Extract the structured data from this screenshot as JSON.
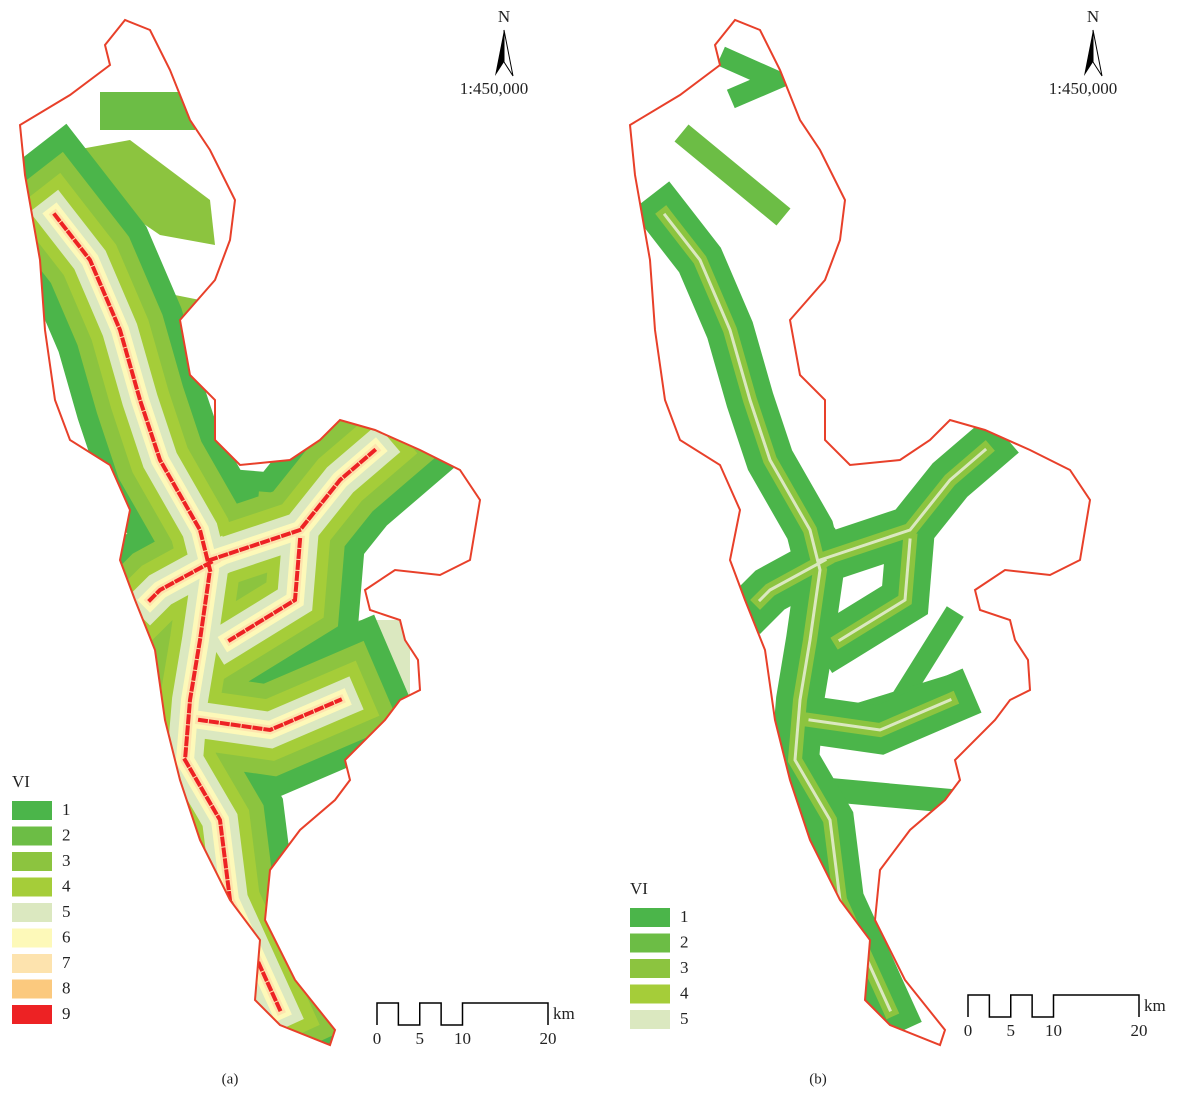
{
  "panels": [
    {
      "caption": "(a)",
      "north": "N",
      "scale": "1:450,000",
      "legend": {
        "title": "VI",
        "items": [
          {
            "label": "1",
            "color": "#4bb54a"
          },
          {
            "label": "2",
            "color": "#6cbd45"
          },
          {
            "label": "3",
            "color": "#8cc43f"
          },
          {
            "label": "4",
            "color": "#a5cd39"
          },
          {
            "label": "5",
            "color": "#dbe8c0"
          },
          {
            "label": "6",
            "color": "#fdf9b9"
          },
          {
            "label": "7",
            "color": "#fde3ae"
          },
          {
            "label": "8",
            "color": "#fbc97e"
          },
          {
            "label": "9",
            "color": "#ed2224"
          }
        ]
      },
      "scale_bar": {
        "ticks": [
          0,
          5,
          10,
          20
        ],
        "unit": "km"
      }
    },
    {
      "caption": "(b)",
      "north": "N",
      "scale": "1:450,000",
      "legend": {
        "title": "VI",
        "items": [
          {
            "label": "1",
            "color": "#4bb54a"
          },
          {
            "label": "2",
            "color": "#6cbd45"
          },
          {
            "label": "3",
            "color": "#8cc43f"
          },
          {
            "label": "4",
            "color": "#a5cd39"
          },
          {
            "label": "5",
            "color": "#dbe8c0"
          }
        ]
      },
      "scale_bar": {
        "ticks": [
          0,
          5,
          10,
          20
        ],
        "unit": "km"
      }
    }
  ]
}
